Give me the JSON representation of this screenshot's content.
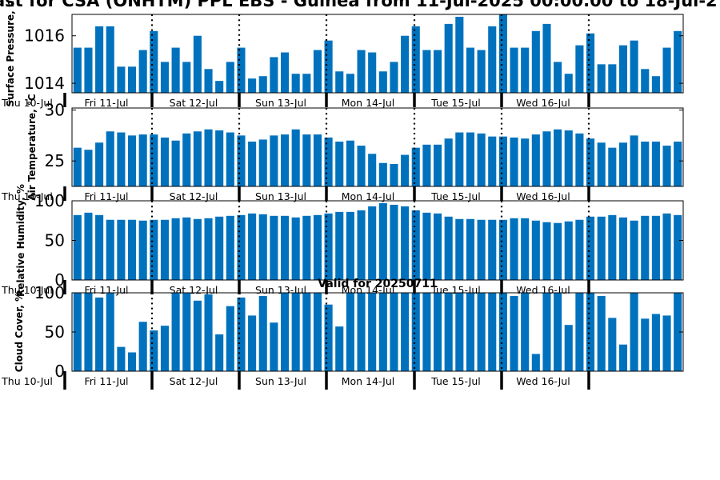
{
  "page_title": "ast for CSA (ONHTM) PPL EBS  - Guinea from 11-Jul-2025 00:00.00 to 18-Jul-2",
  "bar_color": "#0072BD",
  "chart_data": [
    {
      "type": "bar",
      "ylabel": "Surface Pressure, h",
      "ylim": [
        1013.6,
        1016.9
      ],
      "yticks": [
        1014,
        1016
      ],
      "x_start_label": "Thu 10-Jul",
      "day_labels": [
        "Fri 11-Jul",
        "Sat 12-Jul",
        "Sun 13-Jul",
        "Mon 14-Jul",
        "Tue 15-Jul",
        "Wed 16-Jul"
      ],
      "values": [
        1015.5,
        1015.5,
        1016.4,
        1016.4,
        1014.7,
        1014.7,
        1015.4,
        1016.2,
        1014.9,
        1015.5,
        1014.9,
        1016.0,
        1014.6,
        1014.1,
        1014.9,
        1015.5,
        1014.2,
        1014.3,
        1015.1,
        1015.3,
        1014.4,
        1014.4,
        1015.4,
        1015.8,
        1014.5,
        1014.4,
        1015.4,
        1015.3,
        1014.5,
        1014.9,
        1016.0,
        1016.4,
        1015.4,
        1015.4,
        1016.5,
        1016.8,
        1015.5,
        1015.4,
        1016.4,
        1016.9,
        1015.5,
        1015.5,
        1016.2,
        1016.5,
        1014.9,
        1014.4,
        1015.6,
        1016.1,
        1014.8,
        1014.8,
        1015.6,
        1015.8,
        1014.6,
        1014.3,
        1015.5,
        1016.2
      ]
    },
    {
      "type": "bar",
      "ylabel": "Air Temperature, °C",
      "ylim": [
        22.5,
        30.2
      ],
      "yticks": [
        25,
        30
      ],
      "x_start_label": "Thu 10-Jul",
      "day_labels": [
        "Fri 11-Jul",
        "Sat 12-Jul",
        "Sun 13-Jul",
        "Mon 14-Jul",
        "Tue 15-Jul",
        "Wed 16-Jul"
      ],
      "values": [
        26.3,
        26.1,
        26.8,
        27.9,
        27.8,
        27.5,
        27.6,
        27.6,
        27.3,
        27.0,
        27.7,
        27.9,
        28.1,
        28.0,
        27.8,
        27.5,
        26.9,
        27.1,
        27.5,
        27.6,
        28.1,
        27.6,
        27.6,
        27.3,
        26.9,
        27.0,
        26.5,
        25.7,
        24.8,
        24.7,
        25.6,
        26.3,
        26.6,
        26.6,
        27.2,
        27.8,
        27.8,
        27.7,
        27.4,
        27.4,
        27.3,
        27.2,
        27.6,
        27.9,
        28.1,
        28.0,
        27.7,
        27.2,
        26.8,
        26.3,
        26.8,
        27.5,
        26.9,
        26.9,
        26.5,
        26.9
      ]
    },
    {
      "type": "bar",
      "ylabel": "Relative Humidity, %",
      "ylim": [
        0,
        100
      ],
      "yticks": [
        0,
        50,
        100
      ],
      "x_start_label": "Thu 10-Jul",
      "day_labels": [
        "Fri 11-Jul",
        "Sat 12-Jul",
        "Sun 13-Jul",
        "Mon 14-Jul",
        "Tue 15-Jul",
        "Wed 16-Jul"
      ],
      "values": [
        82,
        85,
        82,
        76,
        76,
        76,
        75,
        76,
        76,
        78,
        79,
        77,
        78,
        80,
        81,
        82,
        84,
        83,
        81,
        81,
        79,
        81,
        82,
        84,
        86,
        86,
        88,
        93,
        97,
        95,
        93,
        88,
        85,
        84,
        80,
        77,
        77,
        76,
        76,
        76,
        78,
        78,
        75,
        73,
        72,
        74,
        76,
        80,
        80,
        82,
        79,
        75,
        81,
        81,
        84,
        82
      ]
    },
    {
      "type": "bar",
      "ylabel": "Cloud Cover, %",
      "ylim": [
        0,
        100
      ],
      "yticks": [
        0,
        50,
        100
      ],
      "x_start_label": "Thu 10-Jul",
      "day_labels": [
        "Fri 11-Jul",
        "Sat 12-Jul",
        "Sun 13-Jul",
        "Mon 14-Jul",
        "Tue 15-Jul",
        "Wed 16-Jul"
      ],
      "subtitle": "Valid for 20250711",
      "values": [
        100,
        100,
        94,
        100,
        31,
        24,
        63,
        52,
        58,
        100,
        100,
        90,
        98,
        47,
        83,
        94,
        71,
        96,
        62,
        100,
        100,
        100,
        100,
        85,
        57,
        100,
        100,
        100,
        100,
        100,
        100,
        100,
        100,
        100,
        100,
        100,
        100,
        100,
        100,
        100,
        96,
        100,
        22,
        100,
        100,
        59,
        100,
        100,
        96,
        68,
        34,
        100,
        67,
        73,
        71,
        100
      ]
    }
  ]
}
